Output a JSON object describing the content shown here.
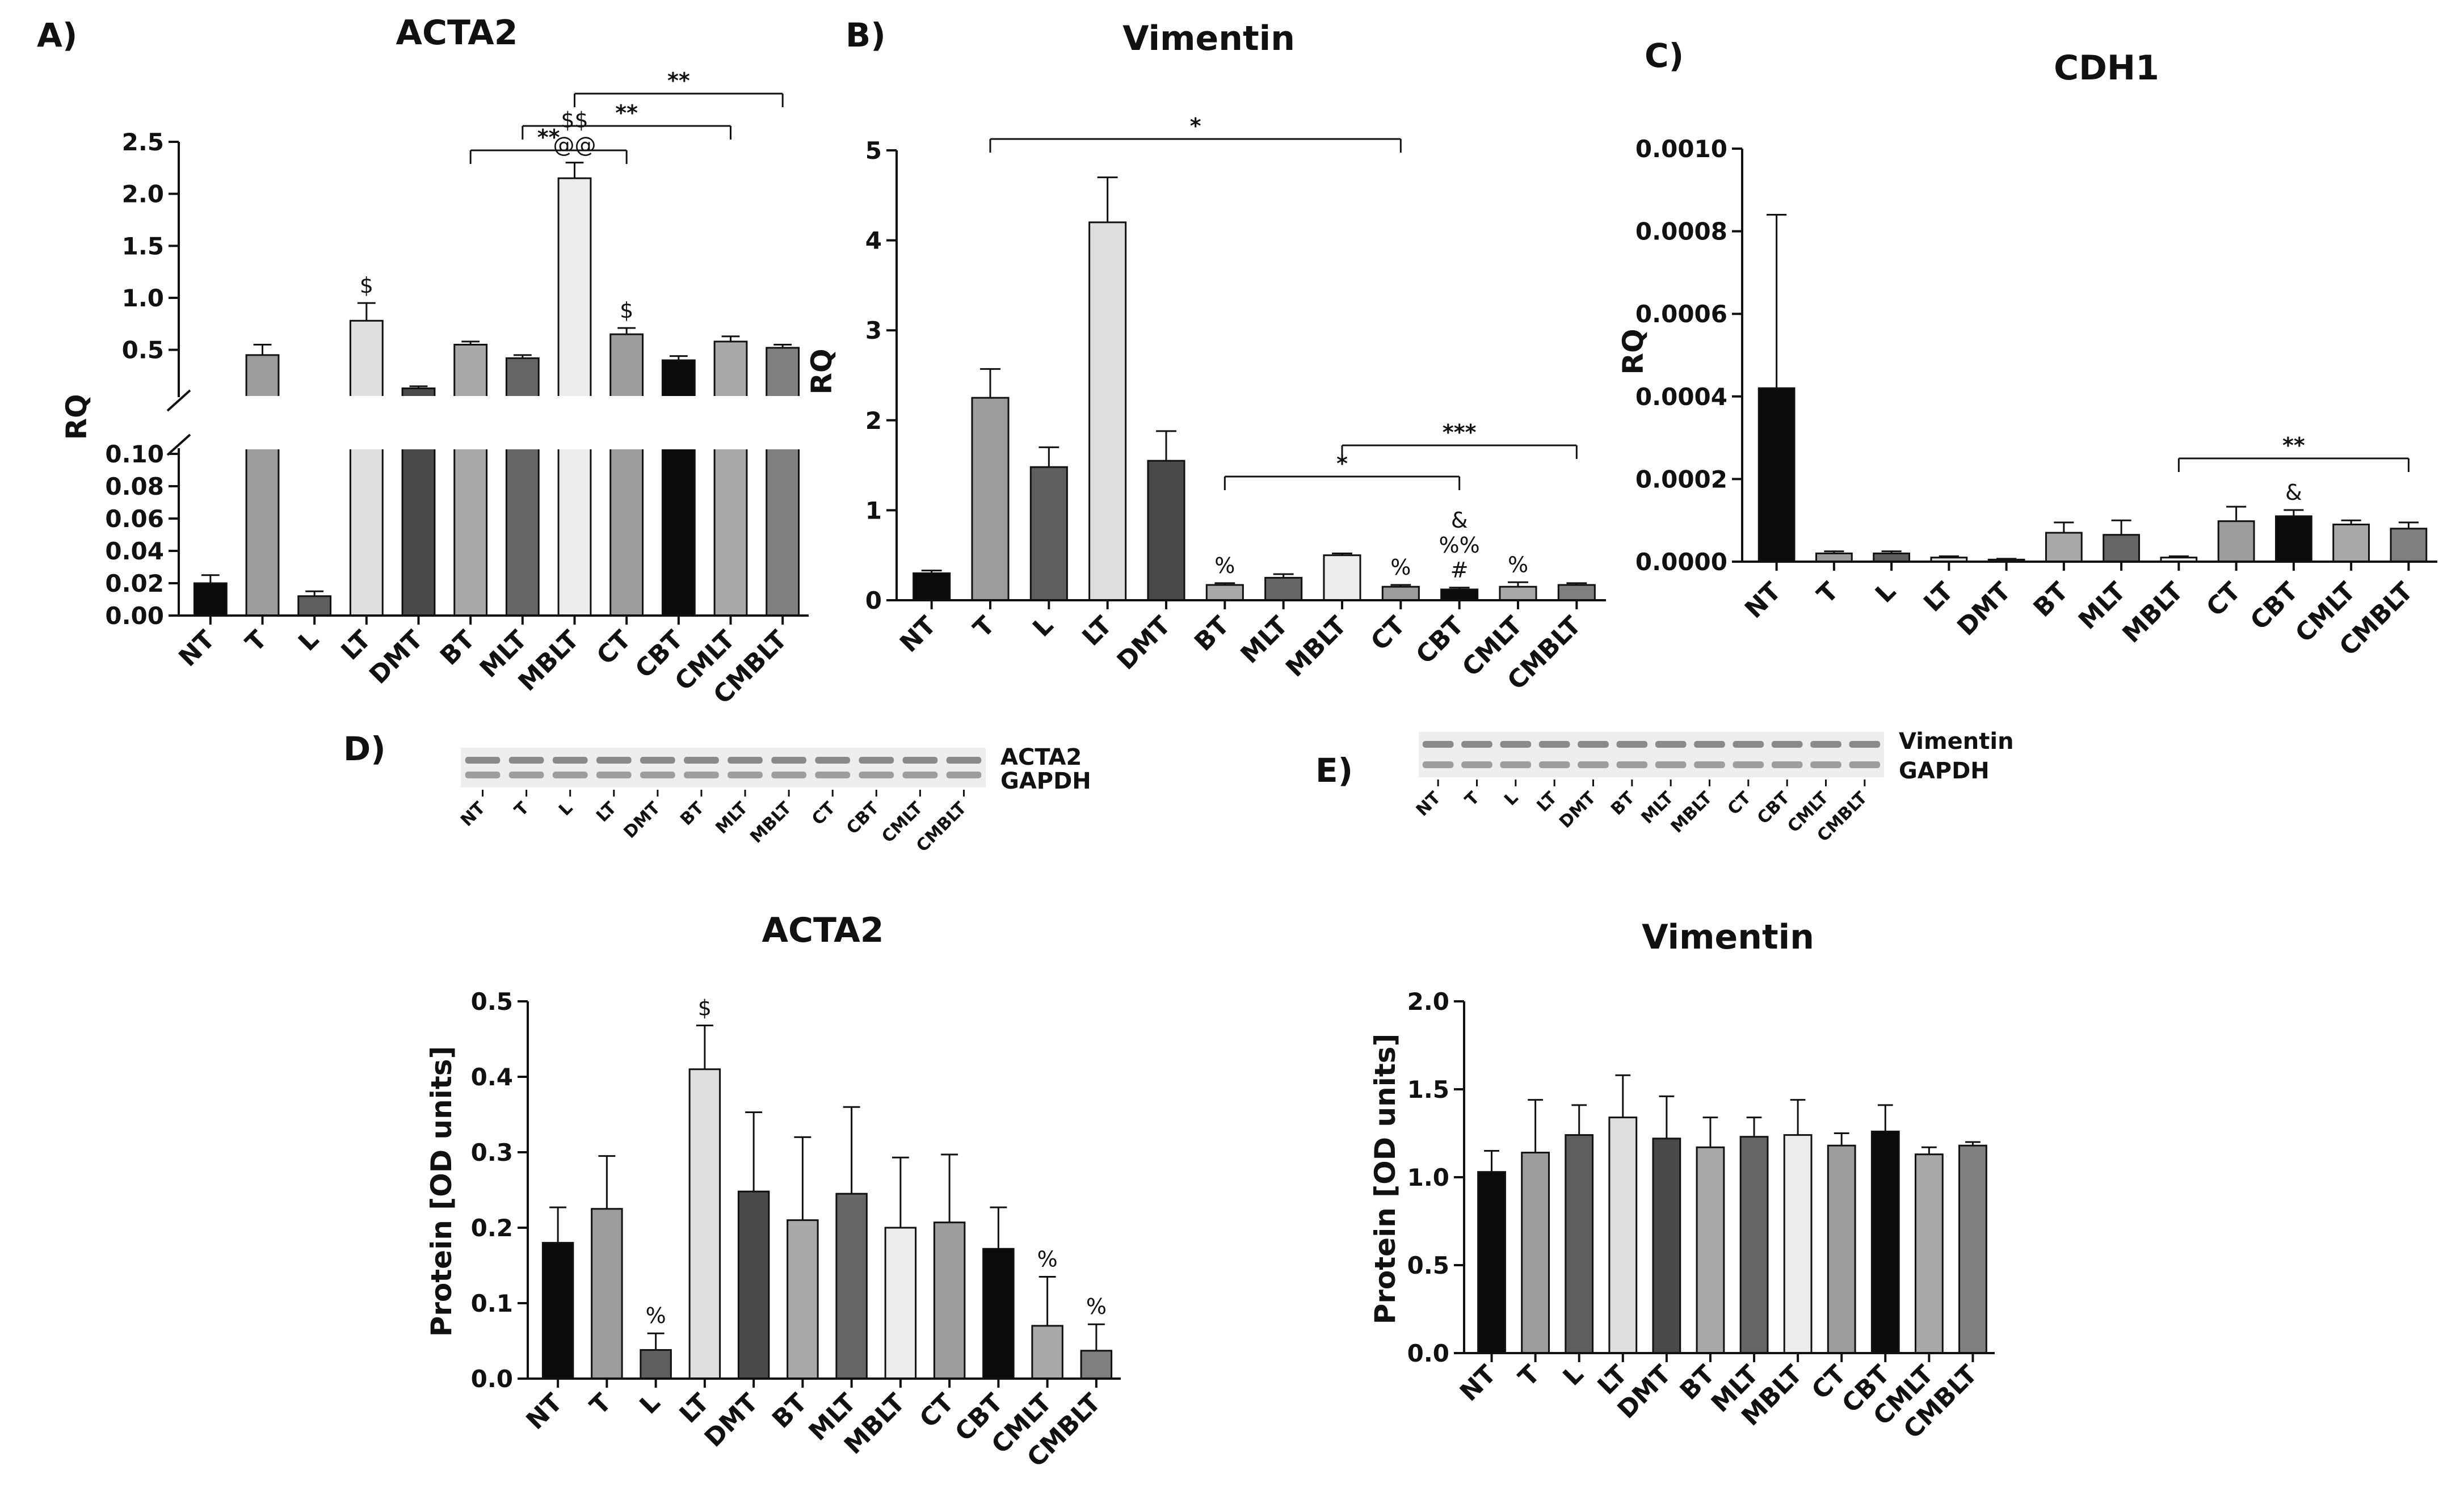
{
  "colors": {
    "NT": "#0b0b0b",
    "T": "#9c9c9c",
    "L": "#5e5e5e",
    "LT": "#dedede",
    "DMT": "#4a4a4a",
    "BT": "#a9a9a9",
    "MLT": "#666666",
    "MBLT": "#ececec",
    "CT": "#9c9c9c",
    "CBT": "#0b0b0b",
    "CMLT": "#a9a9a9",
    "CMBLT": "#7f7f7f"
  },
  "blots": {
    "D": {
      "label": "D)",
      "bands": [
        "ACTA2",
        "GAPDH"
      ],
      "lanes": [
        "NT",
        "T",
        "L",
        "LT",
        "DMT",
        "BT",
        "MLT",
        "MBLT",
        "CT",
        "CBT",
        "CMLT",
        "CMBLT"
      ]
    },
    "E": {
      "label": "E)",
      "bands": [
        "Vimentin",
        "GAPDH"
      ],
      "lanes": [
        "NT",
        "T",
        "L",
        "LT",
        "DMT",
        "BT",
        "MLT",
        "MBLT",
        "CT",
        "CBT",
        "CMLT",
        "CMBLT"
      ]
    }
  },
  "chart_data": [
    {
      "id": "A",
      "panel_label": "A)",
      "type": "bar",
      "title": "ACTA2",
      "ylabel": "RQ",
      "xlabel": "",
      "broken_axis": true,
      "categories": [
        "NT",
        "T",
        "L",
        "LT",
        "DMT",
        "BT",
        "MLT",
        "MBLT",
        "CT",
        "CBT",
        "CMLT",
        "CMBLT"
      ],
      "values": [
        0.02,
        0.45,
        0.012,
        0.78,
        0.13,
        0.55,
        0.42,
        2.15,
        0.65,
        0.4,
        0.58,
        0.52
      ],
      "errors": [
        0.005,
        0.1,
        0.003,
        0.17,
        0.02,
        0.03,
        0.03,
        0.15,
        0.06,
        0.04,
        0.05,
        0.03
      ],
      "ylim_lower": [
        0,
        0.1
      ],
      "ylim_upper": [
        0.1,
        2.5
      ],
      "yticks_lower": [
        "0.00",
        "0.02",
        "0.04",
        "0.06",
        "0.08",
        "0.10"
      ],
      "yticks_upper": [
        "0.5",
        "1.0",
        "1.5",
        "2.0",
        "2.5"
      ],
      "annotations": [
        {
          "category": "LT",
          "lines": [
            "$"
          ]
        },
        {
          "category": "MBLT",
          "lines": [
            "$$",
            "@@"
          ]
        },
        {
          "category": "CT",
          "lines": [
            "$"
          ]
        }
      ],
      "brackets": [
        {
          "from": "BT",
          "to": "CT",
          "label": "**"
        },
        {
          "from": "MLT",
          "to": "CMLT",
          "label": "**"
        },
        {
          "from": "MBLT",
          "to": "CMBLT",
          "label": "**"
        }
      ]
    },
    {
      "id": "B",
      "panel_label": "B)",
      "type": "bar",
      "title": "Vimentin",
      "ylabel": "RQ",
      "xlabel": "",
      "categories": [
        "NT",
        "T",
        "L",
        "LT",
        "DMT",
        "BT",
        "MLT",
        "MBLT",
        "CT",
        "CBT",
        "CMLT",
        "CMBLT"
      ],
      "values": [
        0.3,
        2.25,
        1.48,
        4.2,
        1.55,
        0.17,
        0.25,
        0.5,
        0.15,
        0.12,
        0.15,
        0.17
      ],
      "errors": [
        0.03,
        0.32,
        0.22,
        0.5,
        0.33,
        0.02,
        0.04,
        0.02,
        0.02,
        0.02,
        0.05,
        0.02
      ],
      "ylim": [
        0,
        5
      ],
      "yticks": [
        "0",
        "1",
        "2",
        "3",
        "4",
        "5"
      ],
      "annotations": [
        {
          "category": "BT",
          "lines": [
            "%"
          ]
        },
        {
          "category": "CT",
          "lines": [
            "%"
          ]
        },
        {
          "category": "CBT",
          "lines": [
            "&",
            "%%",
            "#"
          ]
        },
        {
          "category": "CMLT",
          "lines": [
            "%"
          ]
        }
      ],
      "brackets": [
        {
          "from": "T",
          "to": "CT",
          "label": "*"
        },
        {
          "from": "BT",
          "to": "CBT",
          "label": "*"
        },
        {
          "from": "MBLT",
          "to": "CMBLT",
          "label": "***"
        }
      ]
    },
    {
      "id": "C",
      "panel_label": "C)",
      "type": "bar",
      "title": "CDH1",
      "ylabel": "RQ",
      "xlabel": "",
      "categories": [
        "NT",
        "T",
        "L",
        "LT",
        "DMT",
        "BT",
        "MLT",
        "MBLT",
        "CT",
        "CBT",
        "CMLT",
        "CMBLT"
      ],
      "values": [
        0.00042,
        2e-05,
        2e-05,
        1e-05,
        5e-06,
        7e-05,
        6.5e-05,
        1e-05,
        9.8e-05,
        0.00011,
        9e-05,
        8e-05
      ],
      "errors": [
        0.00042,
        5e-06,
        5e-06,
        3e-06,
        2e-06,
        2.5e-05,
        3.5e-05,
        3e-06,
        3.5e-05,
        1.5e-05,
        1e-05,
        1.5e-05
      ],
      "ylim": [
        0,
        0.001
      ],
      "yticks": [
        "0.0000",
        "0.0002",
        "0.0004",
        "0.0006",
        "0.0008",
        "0.0010"
      ],
      "annotations": [
        {
          "category": "CBT",
          "lines": [
            "&"
          ]
        }
      ],
      "brackets": [
        {
          "from": "MBLT",
          "to": "CMBLT",
          "label": "**"
        }
      ]
    },
    {
      "id": "D",
      "type": "bar",
      "title": "ACTA2",
      "ylabel": "Protein [OD units]",
      "xlabel": "",
      "categories": [
        "NT",
        "T",
        "L",
        "LT",
        "DMT",
        "BT",
        "MLT",
        "MBLT",
        "CT",
        "CBT",
        "CMLT",
        "CMBLT"
      ],
      "values": [
        0.18,
        0.225,
        0.038,
        0.41,
        0.248,
        0.21,
        0.245,
        0.2,
        0.207,
        0.172,
        0.07,
        0.037
      ],
      "errors": [
        0.047,
        0.07,
        0.022,
        0.058,
        0.105,
        0.11,
        0.115,
        0.093,
        0.09,
        0.055,
        0.065,
        0.035
      ],
      "ylim": [
        0,
        0.5
      ],
      "yticks": [
        "0.0",
        "0.1",
        "0.2",
        "0.3",
        "0.4",
        "0.5"
      ],
      "annotations": [
        {
          "category": "L",
          "lines": [
            "%"
          ]
        },
        {
          "category": "LT",
          "lines": [
            "$"
          ]
        },
        {
          "category": "CMLT",
          "lines": [
            "%"
          ]
        },
        {
          "category": "CMBLT",
          "lines": [
            "%"
          ]
        }
      ]
    },
    {
      "id": "E",
      "type": "bar",
      "title": "Vimentin",
      "ylabel": "Protein [OD units]",
      "xlabel": "",
      "categories": [
        "NT",
        "T",
        "L",
        "LT",
        "DMT",
        "BT",
        "MLT",
        "MBLT",
        "CT",
        "CBT",
        "CMLT",
        "CMBLT"
      ],
      "values": [
        1.03,
        1.14,
        1.24,
        1.34,
        1.22,
        1.17,
        1.23,
        1.24,
        1.18,
        1.26,
        1.13,
        1.18
      ],
      "errors": [
        0.12,
        0.3,
        0.17,
        0.24,
        0.24,
        0.17,
        0.11,
        0.2,
        0.07,
        0.15,
        0.04,
        0.02
      ],
      "ylim": [
        0,
        2
      ],
      "yticks": [
        "0.0",
        "0.5",
        "1.0",
        "1.5",
        "2.0"
      ],
      "annotations": []
    }
  ]
}
